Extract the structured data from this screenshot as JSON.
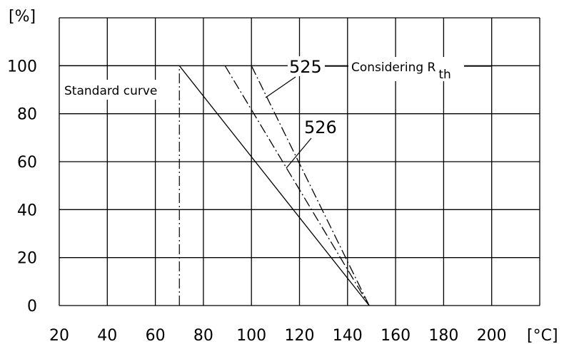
{
  "chart_data": {
    "type": "line",
    "title": "",
    "xlabel": "",
    "ylabel": "",
    "x_unit": "[°C]",
    "y_unit": "[%]",
    "xlim": [
      20,
      220
    ],
    "ylim": [
      0,
      120
    ],
    "x_ticks": [
      "20",
      "40",
      "60",
      "80",
      "100",
      "120",
      "140",
      "160",
      "180",
      "200"
    ],
    "y_ticks": [
      "0",
      "20",
      "40",
      "60",
      "80",
      "100"
    ],
    "grid": true,
    "series": [
      {
        "name": "Standard curve",
        "style": "solid",
        "x": [
          20,
          70,
          149
        ],
        "y": [
          100,
          100,
          0
        ]
      },
      {
        "name": "525",
        "style": "dashdot",
        "x": [
          100,
          149
        ],
        "y": [
          100,
          0
        ]
      },
      {
        "name": "526",
        "style": "dashdot",
        "x": [
          89,
          149
        ],
        "y": [
          100,
          0
        ]
      }
    ],
    "reference_lines": [
      {
        "style": "dashdot",
        "x": [
          70,
          70
        ],
        "y": [
          0,
          100
        ]
      }
    ],
    "annotations": {
      "standard_curve": "Standard curve",
      "label_525": "525",
      "label_526": "526",
      "considering": "Considering R",
      "considering_sub": "th"
    }
  }
}
